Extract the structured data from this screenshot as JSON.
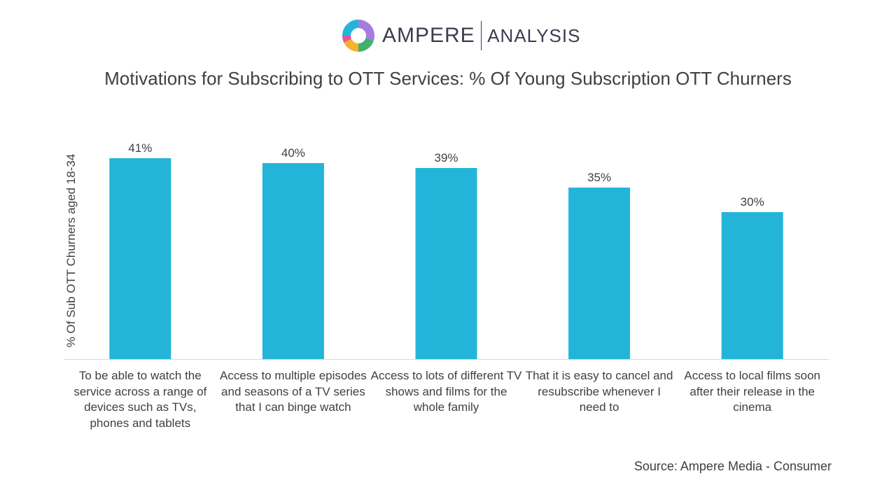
{
  "logo": {
    "word1": "AMPERE",
    "word2": "ANALYSIS",
    "colors": [
      "#a77be0",
      "#43b06c",
      "#f4b32d",
      "#e0559a",
      "#23b5d9"
    ]
  },
  "source": "Source: Ampere Media - Consumer",
  "chart_data": {
    "type": "bar",
    "title": "Motivations for Subscribing to OTT Services: % Of Young Subscription OTT Churners",
    "xlabel": "",
    "ylabel": "% Of Sub OTT Churners aged 18-34",
    "ylim": [
      0,
      50
    ],
    "bar_color": "#23b5d9",
    "categories": [
      "To be able to watch the service across a range of devices such as TVs, phones and tablets",
      "Access to multiple episodes and seasons of a TV series that I can binge watch",
      "Access to lots of different TV shows and films for the whole family",
      "That it is easy to cancel and resubscribe whenever I need to",
      "Access to local films soon after their release in the cinema"
    ],
    "values": [
      41,
      40,
      39,
      35,
      30
    ],
    "data_labels": [
      "41%",
      "40%",
      "39%",
      "35%",
      "30%"
    ]
  }
}
